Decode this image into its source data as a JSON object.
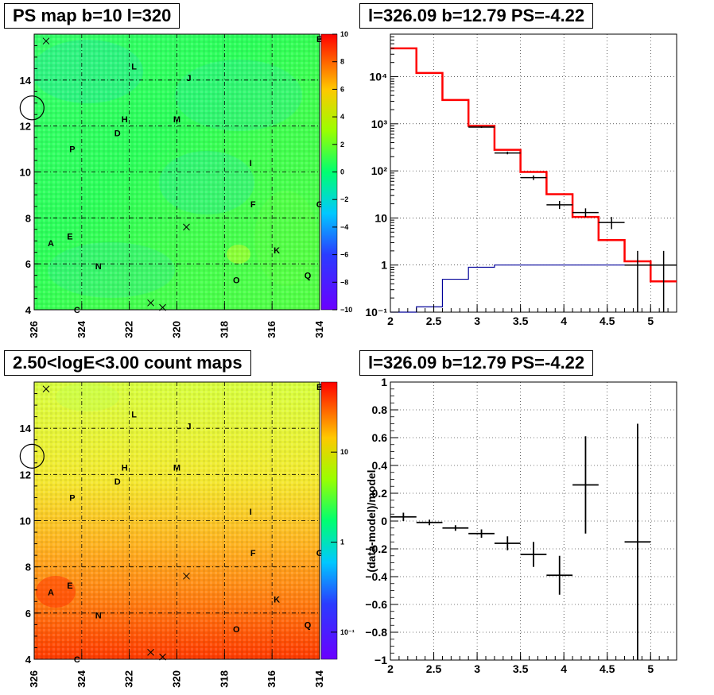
{
  "panels": {
    "ps_map": {
      "title": "PS map b=10 l=320",
      "x_ticks": [
        "326",
        "324",
        "322",
        "320",
        "318",
        "316",
        "314"
      ],
      "y_ticks": [
        "4",
        "6",
        "8",
        "10",
        "12",
        "14"
      ],
      "colorbar_ticks": [
        "10",
        "8",
        "6",
        "4",
        "2",
        "0",
        "−2",
        "−4",
        "−6",
        "−8",
        "−10"
      ],
      "source_labels": [
        {
          "text": "B",
          "l": 314.0,
          "b": 15.8
        },
        {
          "text": "L",
          "l": 321.8,
          "b": 14.6
        },
        {
          "text": "J",
          "l": 319.5,
          "b": 14.1
        },
        {
          "text": "H",
          "l": 322.2,
          "b": 12.3
        },
        {
          "text": "M",
          "l": 320.0,
          "b": 12.3
        },
        {
          "text": "D",
          "l": 322.5,
          "b": 11.7
        },
        {
          "text": "P",
          "l": 324.4,
          "b": 11.0
        },
        {
          "text": "I",
          "l": 316.9,
          "b": 10.4
        },
        {
          "text": "F",
          "l": 316.8,
          "b": 8.6
        },
        {
          "text": "G",
          "l": 314.0,
          "b": 8.6
        },
        {
          "text": "A",
          "l": 325.3,
          "b": 6.9
        },
        {
          "text": "E",
          "l": 324.5,
          "b": 7.2
        },
        {
          "text": "K",
          "l": 315.8,
          "b": 6.6
        },
        {
          "text": "N",
          "l": 323.3,
          "b": 5.9
        },
        {
          "text": "O",
          "l": 317.5,
          "b": 5.3
        },
        {
          "text": "Q",
          "l": 314.5,
          "b": 5.5
        },
        {
          "text": "C",
          "l": 324.2,
          "b": 4.0
        }
      ],
      "x_markers": [
        {
          "l": 325.5,
          "b": 15.7
        },
        {
          "l": 319.6,
          "b": 7.6
        },
        {
          "l": 321.1,
          "b": 4.3
        },
        {
          "l": 320.6,
          "b": 4.1
        }
      ],
      "circle": {
        "l": 326.09,
        "b": 12.79
      }
    },
    "spectrum": {
      "title": "l=326.09 b=12.79 PS=-4.22",
      "x_ticks": [
        "2",
        "2.5",
        "3",
        "3.5",
        "4",
        "4.5",
        "5"
      ],
      "y_ticks": [
        "10⁻¹",
        "1",
        "10",
        "10²",
        "10³",
        "10⁴"
      ]
    },
    "count_map": {
      "title": "2.50<logE<3.00 count maps",
      "colorbar_ticks": [
        "10",
        "1",
        "10⁻¹"
      ]
    },
    "residual": {
      "title": "l=326.09 b=12.79 PS=-4.22",
      "y_label": "(data-model)/model",
      "x_ticks": [
        "2",
        "2.5",
        "3",
        "3.5",
        "4",
        "4.5",
        "5"
      ],
      "y_ticks": [
        "1",
        "0.8",
        "0.6",
        "0.4",
        "0.2",
        "0",
        "−0.2",
        "−0.4",
        "−0.6",
        "−0.8",
        "−1"
      ]
    }
  },
  "colors": {
    "model_line": "#ff0000",
    "background_line": "#000099",
    "data_points": "#000000"
  },
  "chart_data": [
    {
      "type": "heatmap",
      "title": "PS map b=10 l=320",
      "xlabel": "",
      "ylabel": "",
      "xlim": [
        326,
        314
      ],
      "ylim": [
        4,
        16
      ],
      "zlim": [
        -10,
        10
      ],
      "color_scale": "linear",
      "grid": true,
      "description_values": "per-pixel PS values mostly near 0"
    },
    {
      "type": "line",
      "title": "l=326.09 b=12.79 PS=-4.22",
      "xlabel": "",
      "ylabel": "",
      "xlim": [
        2,
        5.3
      ],
      "ylim": [
        0.1,
        80000
      ],
      "yscale": "log",
      "grid": true,
      "bin_edges": [
        2.0,
        2.3,
        2.6,
        2.9,
        3.2,
        3.5,
        3.8,
        4.1,
        4.4,
        4.7,
        5.0,
        5.3
      ],
      "series": [
        {
          "values": [
            40000,
            12000,
            3200,
            900,
            280,
            95,
            32,
            10.5,
            3.4,
            1.2,
            0.45
          ]
        },
        {
          "values": [
            0.1,
            0.13,
            0.5,
            0.9,
            1.0,
            1.0,
            1.0,
            1.0,
            1.0,
            1.0,
            1.0
          ]
        }
      ],
      "points": [
        {
          "x": 3.05,
          "y": 850,
          "xerr": 0.15,
          "ylo": 820,
          "yhi": 880
        },
        {
          "x": 3.35,
          "y": 240,
          "xerr": 0.15,
          "ylo": 225,
          "yhi": 256
        },
        {
          "x": 3.65,
          "y": 72,
          "xerr": 0.15,
          "ylo": 64,
          "yhi": 80
        },
        {
          "x": 3.95,
          "y": 19,
          "xerr": 0.15,
          "ylo": 15.5,
          "yhi": 23
        },
        {
          "x": 4.25,
          "y": 13,
          "xerr": 0.15,
          "ylo": 10.5,
          "yhi": 16
        },
        {
          "x": 4.55,
          "y": 8,
          "xerr": 0.15,
          "ylo": 5.8,
          "yhi": 10.5
        },
        {
          "x": 4.85,
          "y": 1,
          "xerr": 0.15,
          "ylo": 0.1,
          "yhi": 2.0
        },
        {
          "x": 5.15,
          "y": 1,
          "xerr": 0.15,
          "ylo": 0.1,
          "yhi": 2.0
        }
      ]
    },
    {
      "type": "heatmap",
      "title": "2.50<logE<3.00 count maps",
      "xlabel": "",
      "ylabel": "",
      "xlim": [
        326,
        314
      ],
      "ylim": [
        4,
        16
      ],
      "zlim": [
        0.05,
        60
      ],
      "color_scale": "log",
      "grid": true
    },
    {
      "type": "scatter",
      "title": "l=326.09 b=12.79 PS=-4.22",
      "xlabel": "",
      "ylabel": "(data-model)/model",
      "xlim": [
        2,
        5.3
      ],
      "ylim": [
        -1,
        1
      ],
      "grid": true,
      "points": [
        {
          "x": 2.15,
          "y": 0.03,
          "xerr": 0.15,
          "ylo": 0.0,
          "yhi": 0.06
        },
        {
          "x": 2.45,
          "y": -0.01,
          "xerr": 0.15,
          "ylo": -0.03,
          "yhi": 0.01
        },
        {
          "x": 2.75,
          "y": -0.05,
          "xerr": 0.15,
          "ylo": -0.07,
          "yhi": -0.03
        },
        {
          "x": 3.05,
          "y": -0.09,
          "xerr": 0.15,
          "ylo": -0.12,
          "yhi": -0.06
        },
        {
          "x": 3.35,
          "y": -0.16,
          "xerr": 0.15,
          "ylo": -0.21,
          "yhi": -0.11
        },
        {
          "x": 3.65,
          "y": -0.24,
          "xerr": 0.15,
          "ylo": -0.33,
          "yhi": -0.15
        },
        {
          "x": 3.95,
          "y": -0.39,
          "xerr": 0.15,
          "ylo": -0.53,
          "yhi": -0.25
        },
        {
          "x": 4.25,
          "y": 0.26,
          "xerr": 0.15,
          "ylo": -0.09,
          "yhi": 0.61
        },
        {
          "x": 4.85,
          "y": -0.15,
          "xerr": 0.15,
          "ylo": -1.0,
          "yhi": 0.7
        }
      ]
    }
  ]
}
